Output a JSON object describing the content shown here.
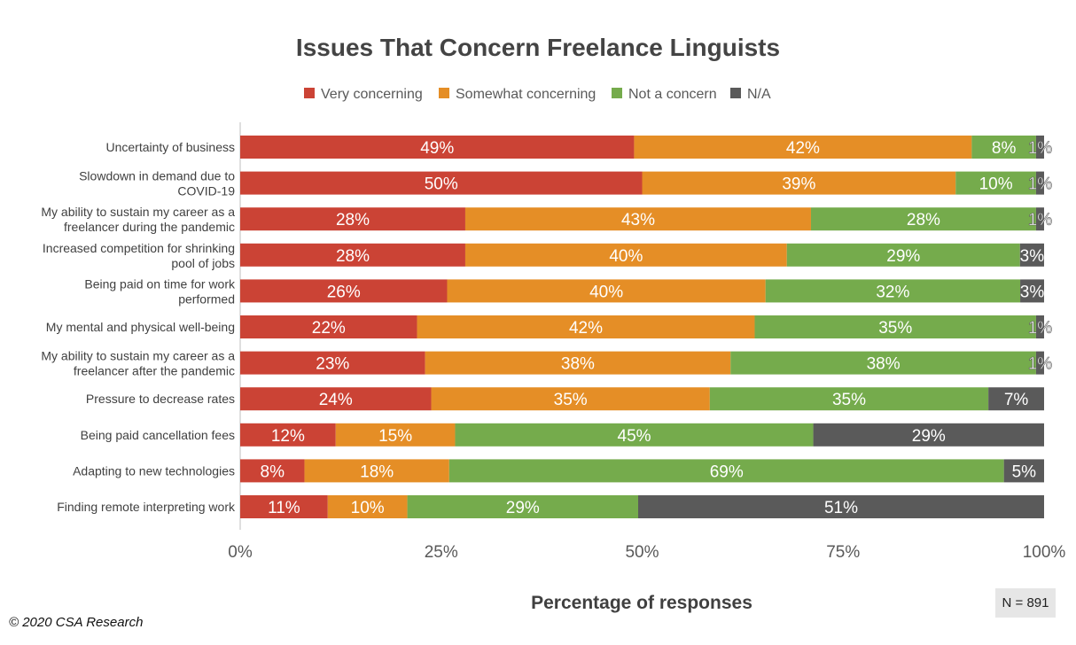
{
  "chart_data": {
    "type": "bar",
    "orientation": "horizontal",
    "stacked": true,
    "stack_mode": "percent",
    "title": "Issues That Concern Freelance Linguists",
    "xlabel": "Percentage of responses",
    "ylabel": "",
    "xlim": [
      0,
      100
    ],
    "x_ticks": [
      "0%",
      "25%",
      "50%",
      "75%",
      "100%"
    ],
    "legend_position": "top",
    "grid": false,
    "categories": [
      "Uncertainty of business",
      "Slowdown in demand due to COVID-19",
      "My ability to sustain my career as a freelancer during the pandemic",
      "Increased competition for shrinking pool of jobs",
      "Being paid on time for work performed",
      "My mental and physical well-being",
      "My ability to sustain my career as a freelancer after the pandemic",
      "Pressure to decrease rates",
      "Being paid cancellation fees",
      "Adapting to new technologies",
      "Finding remote interpreting work"
    ],
    "category_lines": [
      [
        "Uncertainty of business"
      ],
      [
        "Slowdown in demand due to",
        "COVID-19"
      ],
      [
        "My ability to sustain my career as a",
        "freelancer during the pandemic"
      ],
      [
        "Increased competition for shrinking",
        "pool of jobs"
      ],
      [
        "Being paid on time for work",
        "performed"
      ],
      [
        "My mental and physical well-being"
      ],
      [
        "My ability to sustain my career as a",
        "freelancer after the pandemic"
      ],
      [
        "Pressure to decrease rates"
      ],
      [
        "Being paid cancellation fees"
      ],
      [
        "Adapting to new technologies"
      ],
      [
        "Finding remote interpreting work"
      ]
    ],
    "series": [
      {
        "name": "Very concerning",
        "color": "#cb4335",
        "values": [
          49,
          50,
          28,
          28,
          26,
          22,
          23,
          24,
          12,
          8,
          11
        ]
      },
      {
        "name": "Somewhat concerning",
        "color": "#e58e26",
        "values": [
          42,
          39,
          43,
          40,
          40,
          42,
          38,
          35,
          15,
          18,
          10
        ]
      },
      {
        "name": "Not a concern",
        "color": "#75ab4c",
        "values": [
          8,
          10,
          28,
          29,
          32,
          35,
          38,
          35,
          45,
          69,
          29
        ]
      },
      {
        "name": "N/A",
        "color": "#5a5a5a",
        "values": [
          1,
          1,
          1,
          3,
          3,
          1,
          1,
          7,
          29,
          5,
          51
        ]
      }
    ]
  },
  "footer": {
    "sample_size": "N = 891",
    "copyright": "© 2020 CSA Research"
  }
}
